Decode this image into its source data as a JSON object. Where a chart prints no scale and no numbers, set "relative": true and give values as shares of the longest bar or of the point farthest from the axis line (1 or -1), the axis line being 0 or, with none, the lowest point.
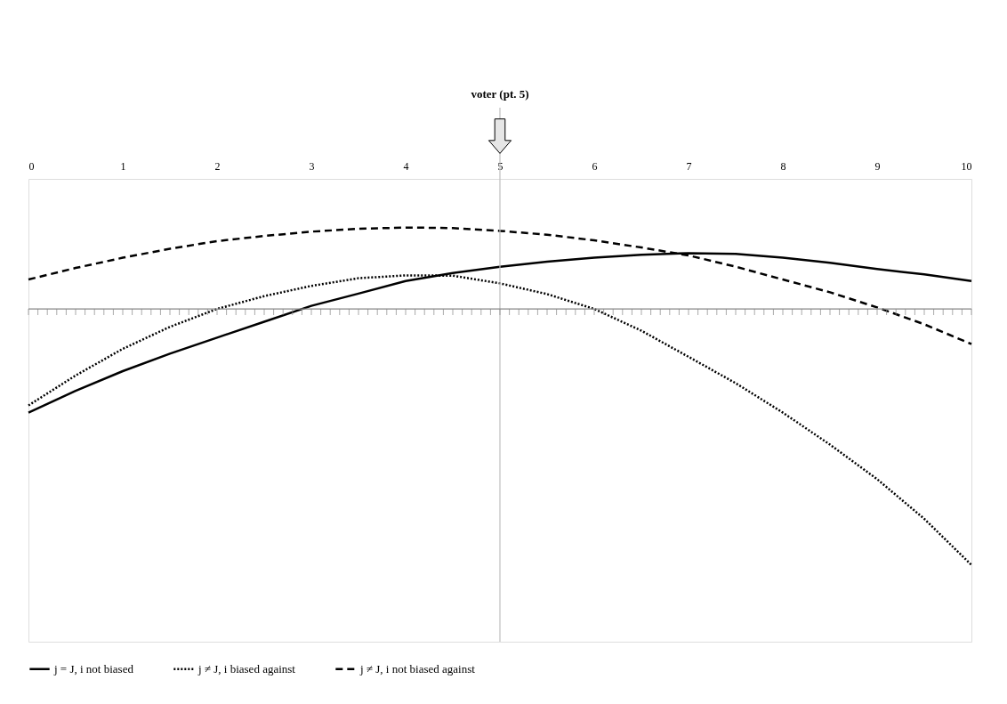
{
  "chart_data": {
    "type": "line",
    "relative": true,
    "x": [
      0,
      0.5,
      1,
      1.5,
      2,
      2.5,
      3,
      3.5,
      4,
      4.5,
      5,
      5.5,
      6,
      6.5,
      7,
      7.5,
      8,
      8.5,
      9,
      9.5,
      10
    ],
    "xlim": [
      0,
      10
    ],
    "xticks": [
      0,
      1,
      2,
      3,
      4,
      5,
      6,
      7,
      8,
      9,
      10
    ],
    "series": [
      {
        "name": "j = J, i not biased",
        "color": "#000000",
        "line_style": "solid",
        "values": [
          -0.405,
          -0.32,
          -0.243,
          -0.175,
          -0.112,
          -0.05,
          0.012,
          0.06,
          0.109,
          0.14,
          0.165,
          0.185,
          0.2,
          0.212,
          0.218,
          0.215,
          0.2,
          0.18,
          0.156,
          0.135,
          0.109
        ]
      },
      {
        "name": "j ≠ J, i biased against",
        "color": "#000000",
        "line_style": "dotted",
        "values": [
          -0.377,
          -0.26,
          -0.156,
          -0.07,
          0,
          0.05,
          0.09,
          0.12,
          0.131,
          0.13,
          0.1,
          0.058,
          0,
          -0.085,
          -0.187,
          -0.29,
          -0.405,
          -0.53,
          -0.665,
          -0.82,
          -1
        ]
      },
      {
        "name": "j ≠ J,  i not biased against",
        "color": "#000000",
        "line_style": "dashed",
        "values": [
          0.115,
          0.16,
          0.2,
          0.235,
          0.265,
          0.285,
          0.302,
          0.313,
          0.318,
          0.316,
          0.305,
          0.29,
          0.268,
          0.24,
          0.209,
          0.165,
          0.115,
          0.065,
          0.006,
          -0.06,
          -0.137
        ]
      }
    ],
    "ref_lines": [
      {
        "axis": "x",
        "value": 5,
        "label": "voter (pt. 5)",
        "color": "#bfbfbf"
      }
    ],
    "legend": "bottom",
    "grid": false
  }
}
